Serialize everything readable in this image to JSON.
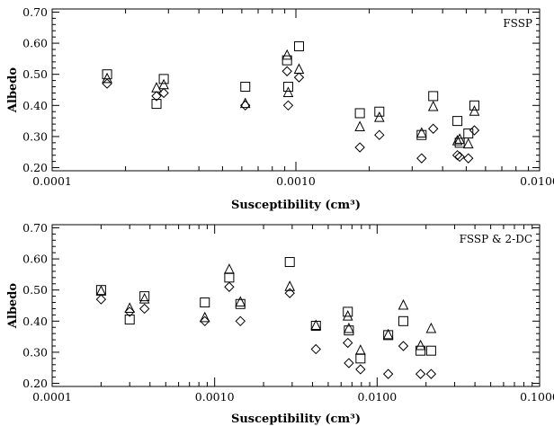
{
  "chart_data": [
    {
      "type": "scatter",
      "title": "",
      "panel_label": "FSSP",
      "xlabel": "Susceptibility (cm³)",
      "ylabel": "Albedo",
      "xscale": "log",
      "xlim": [
        0.0001,
        0.01
      ],
      "ylim": [
        0.19,
        0.71
      ],
      "xticks": [
        0.0001,
        0.001,
        0.01
      ],
      "xtick_labels": [
        "0.0001",
        "0.0010",
        "0.0100"
      ],
      "yticks": [
        0.2,
        0.3,
        0.4,
        0.5,
        0.6,
        0.7
      ],
      "ytick_labels": [
        "0.20",
        "0.30",
        "0.40",
        "0.50",
        "0.60",
        "0.70"
      ],
      "grid": false,
      "series": [
        {
          "marker": "square",
          "points": [
            [
              0.000168,
              0.5
            ],
            [
              0.000268,
              0.405
            ],
            [
              0.000287,
              0.485
            ],
            [
              0.00062,
              0.46
            ],
            [
              0.00092,
              0.545
            ],
            [
              0.00093,
              0.46
            ],
            [
              0.00103,
              0.59
            ],
            [
              0.00183,
              0.375
            ],
            [
              0.0022,
              0.38
            ],
            [
              0.00328,
              0.305
            ],
            [
              0.00366,
              0.43
            ],
            [
              0.0046,
              0.35
            ],
            [
              0.0047,
              0.28
            ],
            [
              0.0051,
              0.31
            ],
            [
              0.0054,
              0.4
            ]
          ]
        },
        {
          "marker": "triangle",
          "points": [
            [
              0.000168,
              0.485
            ],
            [
              0.000268,
              0.455
            ],
            [
              0.000287,
              0.465
            ],
            [
              0.00062,
              0.405
            ],
            [
              0.00092,
              0.56
            ],
            [
              0.00093,
              0.44
            ],
            [
              0.00103,
              0.515
            ],
            [
              0.00183,
              0.33
            ],
            [
              0.0022,
              0.36
            ],
            [
              0.00328,
              0.31
            ],
            [
              0.00366,
              0.395
            ],
            [
              0.0046,
              0.285
            ],
            [
              0.0047,
              0.29
            ],
            [
              0.0051,
              0.275
            ],
            [
              0.0054,
              0.38
            ]
          ]
        },
        {
          "marker": "diamond",
          "points": [
            [
              0.000168,
              0.47
            ],
            [
              0.000268,
              0.43
            ],
            [
              0.000287,
              0.44
            ],
            [
              0.00062,
              0.4
            ],
            [
              0.00092,
              0.51
            ],
            [
              0.00093,
              0.4
            ],
            [
              0.00103,
              0.49
            ],
            [
              0.00183,
              0.265
            ],
            [
              0.0022,
              0.305
            ],
            [
              0.00328,
              0.23
            ],
            [
              0.00366,
              0.325
            ],
            [
              0.0046,
              0.24
            ],
            [
              0.0047,
              0.235
            ],
            [
              0.0051,
              0.23
            ],
            [
              0.0054,
              0.32
            ]
          ]
        }
      ]
    },
    {
      "type": "scatter",
      "title": "",
      "panel_label": "FSSP & 2-DC",
      "xlabel": "Susceptibility (cm³)",
      "ylabel": "Albedo",
      "xscale": "log",
      "xlim": [
        0.0001,
        0.1
      ],
      "ylim": [
        0.19,
        0.71
      ],
      "xticks": [
        0.0001,
        0.001,
        0.01,
        0.1
      ],
      "xtick_labels": [
        "0.0001",
        "0.0010",
        "0.0100",
        "0.1000"
      ],
      "yticks": [
        0.2,
        0.3,
        0.4,
        0.5,
        0.6,
        0.7
      ],
      "ytick_labels": [
        "0.20",
        "0.30",
        "0.40",
        "0.50",
        "0.60",
        "0.70"
      ],
      "grid": false,
      "series": [
        {
          "marker": "square",
          "points": [
            [
              0.0002,
              0.5
            ],
            [
              0.0003,
              0.405
            ],
            [
              0.00037,
              0.48
            ],
            [
              0.00087,
              0.46
            ],
            [
              0.00123,
              0.54
            ],
            [
              0.00144,
              0.455
            ],
            [
              0.0029,
              0.59
            ],
            [
              0.0042,
              0.385
            ],
            [
              0.0066,
              0.43
            ],
            [
              0.0067,
              0.37
            ],
            [
              0.0079,
              0.28
            ],
            [
              0.0117,
              0.355
            ],
            [
              0.0145,
              0.4
            ],
            [
              0.0185,
              0.305
            ],
            [
              0.0215,
              0.305
            ]
          ]
        },
        {
          "marker": "triangle",
          "points": [
            [
              0.0002,
              0.495
            ],
            [
              0.0003,
              0.44
            ],
            [
              0.00037,
              0.47
            ],
            [
              0.00087,
              0.41
            ],
            [
              0.00123,
              0.565
            ],
            [
              0.00144,
              0.46
            ],
            [
              0.0029,
              0.51
            ],
            [
              0.0042,
              0.385
            ],
            [
              0.0066,
              0.415
            ],
            [
              0.0067,
              0.375
            ],
            [
              0.0079,
              0.305
            ],
            [
              0.0117,
              0.355
            ],
            [
              0.0145,
              0.45
            ],
            [
              0.0185,
              0.32
            ],
            [
              0.0215,
              0.375
            ]
          ]
        },
        {
          "marker": "diamond",
          "points": [
            [
              0.0002,
              0.47
            ],
            [
              0.0003,
              0.43
            ],
            [
              0.00037,
              0.44
            ],
            [
              0.00087,
              0.4
            ],
            [
              0.00123,
              0.51
            ],
            [
              0.00144,
              0.4
            ],
            [
              0.0029,
              0.49
            ],
            [
              0.0042,
              0.31
            ],
            [
              0.0066,
              0.33
            ],
            [
              0.0067,
              0.265
            ],
            [
              0.0079,
              0.245
            ],
            [
              0.0117,
              0.23
            ],
            [
              0.0145,
              0.32
            ],
            [
              0.0185,
              0.23
            ],
            [
              0.0215,
              0.23
            ]
          ]
        }
      ]
    }
  ]
}
